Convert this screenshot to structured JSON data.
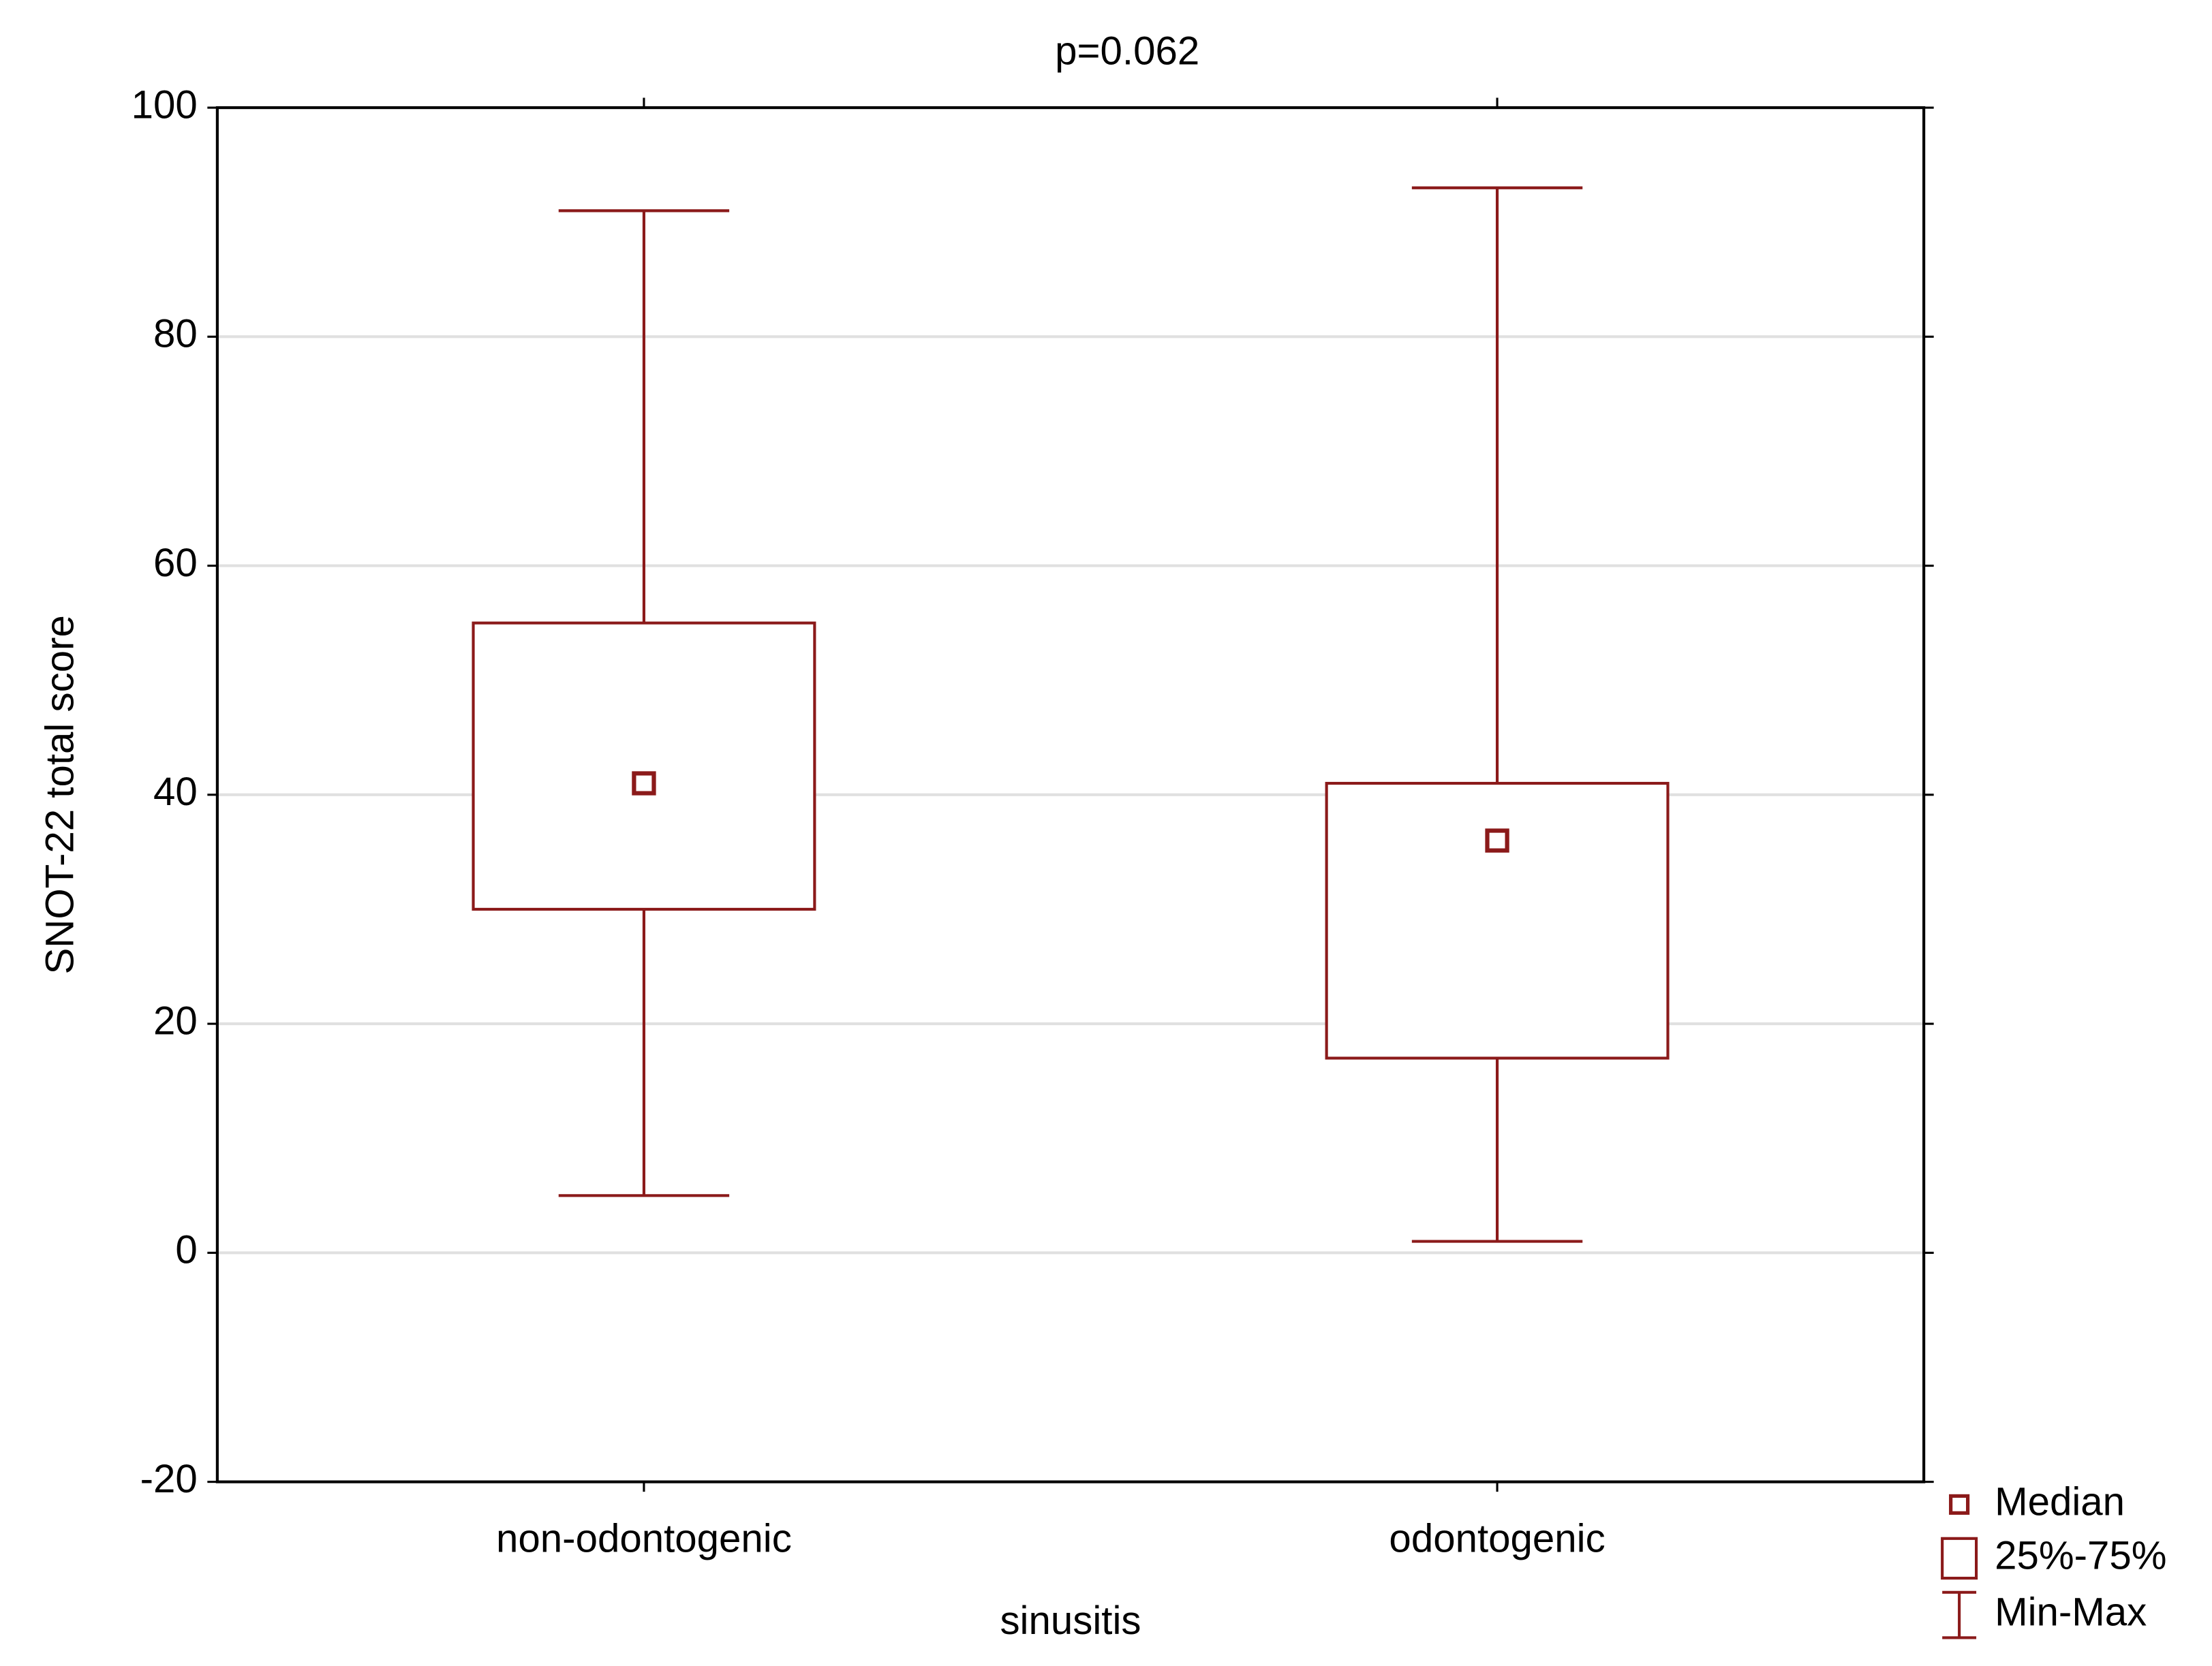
{
  "chart_data": {
    "type": "box",
    "title": "p=0.062",
    "x_label": "sinusitis",
    "y_label": "SNOT-22 total score",
    "categories": [
      "non-odontogenic",
      "odontogenic"
    ],
    "min": [
      5,
      1
    ],
    "q1": [
      30,
      17
    ],
    "median": [
      41,
      36
    ],
    "q3": [
      55,
      41
    ],
    "max": [
      91,
      93
    ],
    "color": "#8b1a1a",
    "ylim": [
      -20,
      100
    ],
    "yticks": [
      -20,
      0,
      20,
      40,
      60,
      80,
      100
    ],
    "grid": true,
    "legend": [
      "Median",
      "25%-75%",
      "Min-Max"
    ],
    "legend_position": "bottom-right"
  }
}
